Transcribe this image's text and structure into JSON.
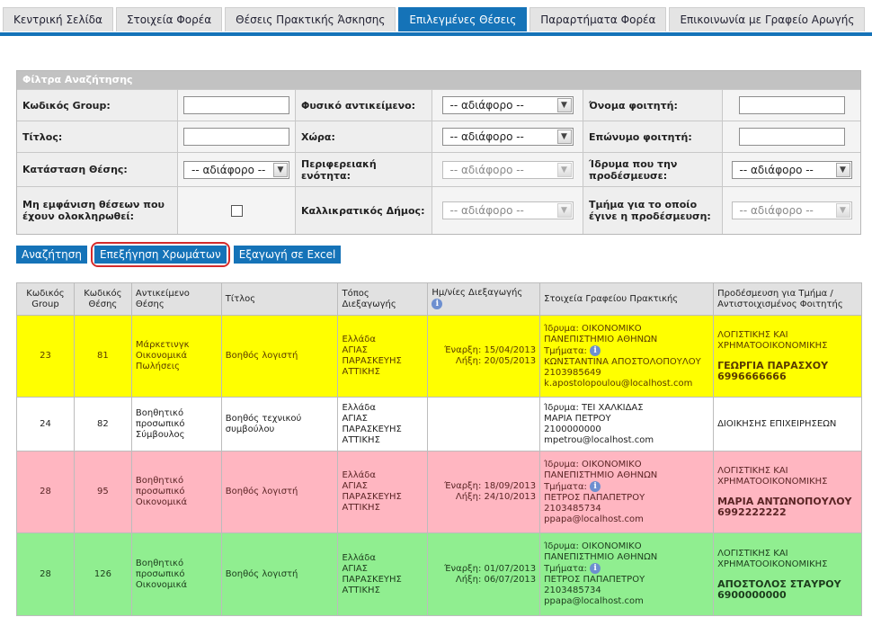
{
  "tabs": [
    {
      "label": "Κεντρική Σελίδα",
      "active": false
    },
    {
      "label": "Στοιχεία Φορέα",
      "active": false
    },
    {
      "label": "Θέσεις Πρακτικής Άσκησης",
      "active": false
    },
    {
      "label": "Επιλεγμένες Θέσεις",
      "active": true
    },
    {
      "label": "Παραρτήματα Φορέα",
      "active": false
    },
    {
      "label": "Επικοινωνία με Γραφείο Αρωγής",
      "active": false
    }
  ],
  "filters": {
    "title": "Φίλτρα Αναζήτησης",
    "group_code_label": "Κωδικός Group:",
    "group_code_value": "",
    "physical_object_label": "Φυσικό αντικείμενο:",
    "physical_object_value": "-- αδιάφορο --",
    "student_name_label": "Όνομα φοιτητή:",
    "student_name_value": "",
    "title_label": "Τίτλος:",
    "title_value": "",
    "country_label": "Χώρα:",
    "country_value": "-- αδιάφορο --",
    "student_surname_label": "Επώνυμο φοιτητή:",
    "student_surname_value": "",
    "status_label": "Κατάσταση Θέσης:",
    "status_value": "-- αδιάφορο --",
    "region_label": "Περιφερειακή ενότητα:",
    "region_value": "-- αδιάφορο --",
    "institution_label": "Ίδρυμα που την προδέσμευσε:",
    "institution_value": "-- αδιάφορο --",
    "hide_completed_label": "Μη εμφάνιση θέσεων που έχουν ολοκληρωθεί:",
    "hide_completed_checked": false,
    "municipality_label": "Καλλικρατικός Δήμος:",
    "municipality_value": "-- αδιάφορο --",
    "department_label": "Τμήμα για το οποίο έγινε η προδέσμευση:",
    "department_value": "-- αδιάφορο --"
  },
  "buttons": {
    "search": "Αναζήτηση",
    "explain_colors": "Επεξήγηση Χρωμάτων",
    "export_excel": "Εξαγωγή σε Excel"
  },
  "table": {
    "headers": {
      "group_code": "Κωδικός Group",
      "position_code": "Κωδικός Θέσης",
      "subject": "Αντικείμενο Θέσης",
      "title": "Τίτλος",
      "location": "Τόπος Διεξαγωγής",
      "dates": "Ημ/νίες Διεξαγωγής",
      "office": "Στοιχεία Γραφείου Πρακτικής",
      "reservation": "Προδέσμευση για Τμήμα / Αντιστοιχισμένος Φοιτητής"
    },
    "rows": [
      {
        "color": "yellow",
        "group_code": "23",
        "position_code": "81",
        "subject": "Μάρκετινγκ Οικονομικά Πωλήσεις",
        "title": "Βοηθός λογιστή",
        "location": [
          "Ελλάδα",
          "ΑΓΙΑΣ",
          "ΠΑΡΑΣΚΕΥΗΣ",
          "ΑΤΤΙΚΗΣ"
        ],
        "start": "Έναρξη: 15/04/2013",
        "end": "Λήξη: 20/05/2013",
        "institution": "Ίδρυμα: ΟΙΚΟΝΟΜΙΚΟ ΠΑΝΕΠΙΣΤΗΜΙΟ ΑΘΗΝΩΝ",
        "departments_label": "Τμήματα:",
        "contact_name": "ΚΩΝΣΤΑΝΤΙΝΑ ΑΠΟΣΤΟΛΟΠΟΥΛΟΥ",
        "phone": "2103985649",
        "email": "k.apostolopoulou@localhost.com",
        "department": "ΛΟΓΙΣΤΙΚΗΣ ΚΑΙ ΧΡΗΜΑΤΟΟΙΚΟΝΟΜΙΚΗΣ",
        "student": "ΓΕΩΡΓΙΑ ΠΑΡΑΣΧΟΥ",
        "student_phone": "6996666666"
      },
      {
        "color": "white",
        "group_code": "24",
        "position_code": "82",
        "subject": "Βοηθητικό προσωπικό Σύμβουλος",
        "title": "Βοηθός τεχνικού συμβούλου",
        "location": [
          "Ελλάδα",
          "ΑΓΙΑΣ",
          "ΠΑΡΑΣΚΕΥΗΣ",
          "ΑΤΤΙΚΗΣ"
        ],
        "start": "",
        "end": "",
        "institution": "Ίδρυμα: ΤΕΙ ΧΑΛΚΙΔΑΣ",
        "departments_label": "",
        "contact_name": "ΜΑΡΙΑ ΠΕΤΡΟΥ",
        "phone": "2100000000",
        "email": "mpetrou@localhost.com",
        "department": "ΔΙΟΙΚΗΣΗΣ ΕΠΙΧΕΙΡΗΣΕΩΝ",
        "student": "",
        "student_phone": ""
      },
      {
        "color": "pink",
        "group_code": "28",
        "position_code": "95",
        "subject": "Βοηθητικό προσωπικό Οικονομικά",
        "title": "Βοηθός λογιστή",
        "location": [
          "Ελλάδα",
          "ΑΓΙΑΣ",
          "ΠΑΡΑΣΚΕΥΗΣ",
          "ΑΤΤΙΚΗΣ"
        ],
        "start": "Έναρξη: 18/09/2013",
        "end": "Λήξη: 24/10/2013",
        "institution": "Ίδρυμα: ΟΙΚΟΝΟΜΙΚΟ ΠΑΝΕΠΙΣΤΗΜΙΟ ΑΘΗΝΩΝ",
        "departments_label": "Τμήματα:",
        "contact_name": "ΠΕΤΡΟΣ ΠΑΠΑΠΕΤΡΟΥ",
        "phone": "2103485734",
        "email": "ppapa@localhost.com",
        "department": "ΛΟΓΙΣΤΙΚΗΣ ΚΑΙ ΧΡΗΜΑΤΟΟΙΚΟΝΟΜΙΚΗΣ",
        "student": "ΜΑΡΙΑ ΑΝΤΩΝΟΠΟΥΛΟΥ",
        "student_phone": "6992222222"
      },
      {
        "color": "green",
        "group_code": "28",
        "position_code": "126",
        "subject": "Βοηθητικό προσωπικό Οικονομικά",
        "title": "Βοηθός λογιστή",
        "location": [
          "Ελλάδα",
          "ΑΓΙΑΣ",
          "ΠΑΡΑΣΚΕΥΗΣ",
          "ΑΤΤΙΚΗΣ"
        ],
        "start": "Έναρξη: 01/07/2013",
        "end": "Λήξη: 06/07/2013",
        "institution": "Ίδρυμα: ΟΙΚΟΝΟΜΙΚΟ ΠΑΝΕΠΙΣΤΗΜΙΟ ΑΘΗΝΩΝ",
        "departments_label": "Τμήματα:",
        "contact_name": "ΠΕΤΡΟΣ ΠΑΠΑΠΕΤΡΟΥ",
        "phone": "2103485734",
        "email": "ppapa@localhost.com",
        "department": "ΛΟΓΙΣΤΙΚΗΣ ΚΑΙ ΧΡΗΜΑΤΟΟΙΚΟΝΟΜΙΚΗΣ",
        "student": "ΑΠΟΣΤΟΛΟΣ ΣΤΑΥΡΟΥ",
        "student_phone": "6900000000"
      }
    ]
  }
}
